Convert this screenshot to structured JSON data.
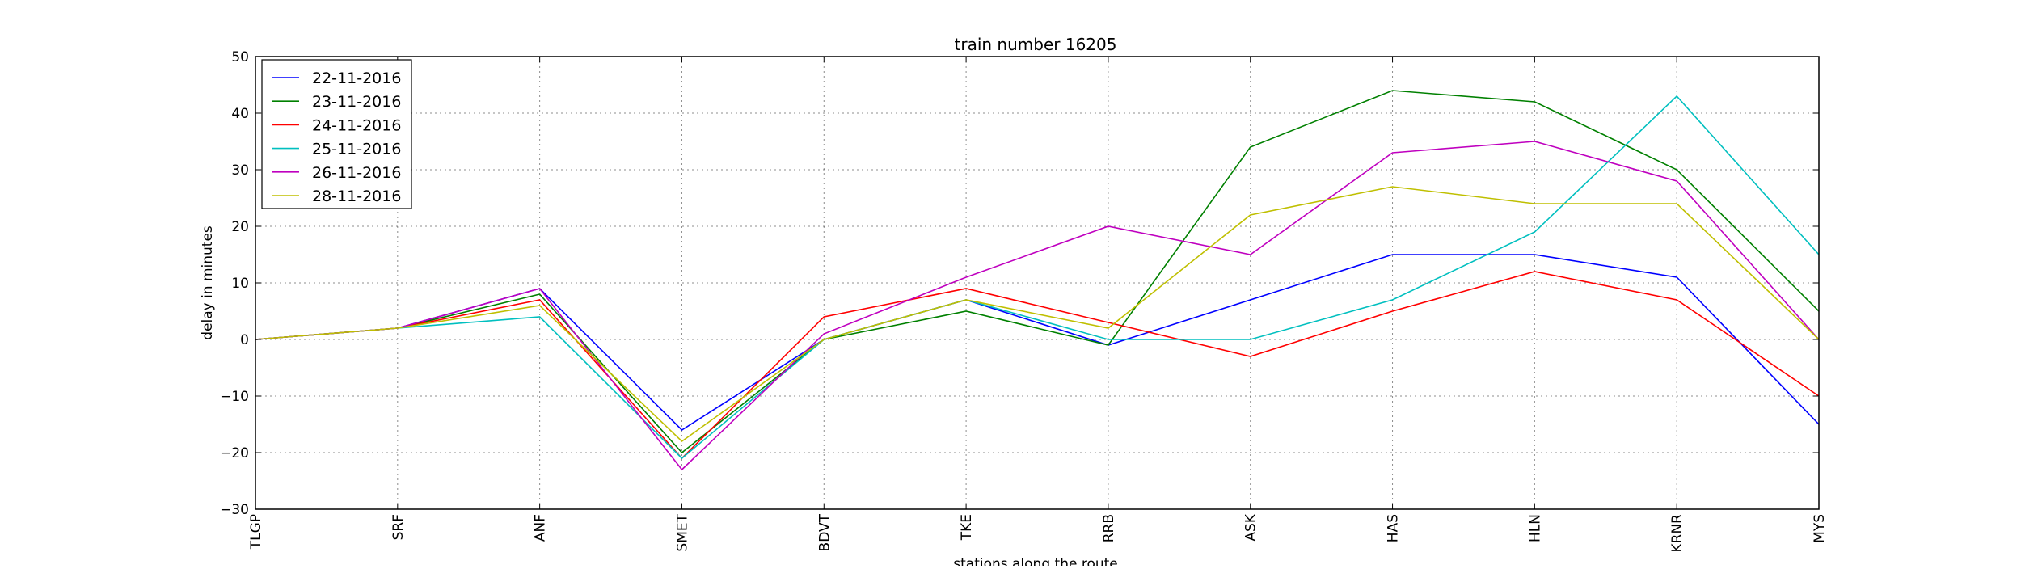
{
  "chart_data": {
    "type": "line",
    "title": "train number 16205",
    "xlabel": "stations along the route",
    "ylabel": "delay in minutes",
    "categories": [
      "TLGP",
      "SRF",
      "ANF",
      "SMET",
      "BDVT",
      "TKE",
      "RRB",
      "ASK",
      "HAS",
      "HLN",
      "KRNR",
      "MYS"
    ],
    "ylim": [
      -30,
      50
    ],
    "yticks": [
      {
        "value": -30,
        "label": "−30"
      },
      {
        "value": -20,
        "label": "−20"
      },
      {
        "value": -10,
        "label": "−10"
      },
      {
        "value": 0,
        "label": "0"
      },
      {
        "value": 10,
        "label": "10"
      },
      {
        "value": 20,
        "label": "20"
      },
      {
        "value": 30,
        "label": "30"
      },
      {
        "value": 40,
        "label": "40"
      },
      {
        "value": 50,
        "label": "50"
      }
    ],
    "grid": true,
    "legend_position": "top-left",
    "series": [
      {
        "name": "22-11-2016",
        "color": "#0000ff",
        "values": [
          0,
          2,
          9,
          -16,
          0,
          7,
          -1,
          7,
          15,
          15,
          11,
          -15
        ]
      },
      {
        "name": "23-11-2016",
        "color": "#008000",
        "values": [
          0,
          2,
          8,
          -20,
          0,
          5,
          -1,
          34,
          44,
          42,
          30,
          5
        ]
      },
      {
        "name": "24-11-2016",
        "color": "#ff0000",
        "values": [
          0,
          2,
          7,
          -21,
          4,
          9,
          3,
          -3,
          5,
          12,
          7,
          -10
        ]
      },
      {
        "name": "25-11-2016",
        "color": "#00bfbf",
        "values": [
          0,
          2,
          4,
          -21,
          0,
          7,
          0,
          0,
          7,
          19,
          43,
          15
        ]
      },
      {
        "name": "26-11-2016",
        "color": "#bf00bf",
        "values": [
          0,
          2,
          9,
          -23,
          1,
          11,
          20,
          15,
          33,
          35,
          28,
          0
        ]
      },
      {
        "name": "28-11-2016",
        "color": "#bfbf00",
        "values": [
          0,
          2,
          6,
          -18,
          0,
          7,
          2,
          22,
          27,
          24,
          24,
          0
        ]
      }
    ]
  }
}
